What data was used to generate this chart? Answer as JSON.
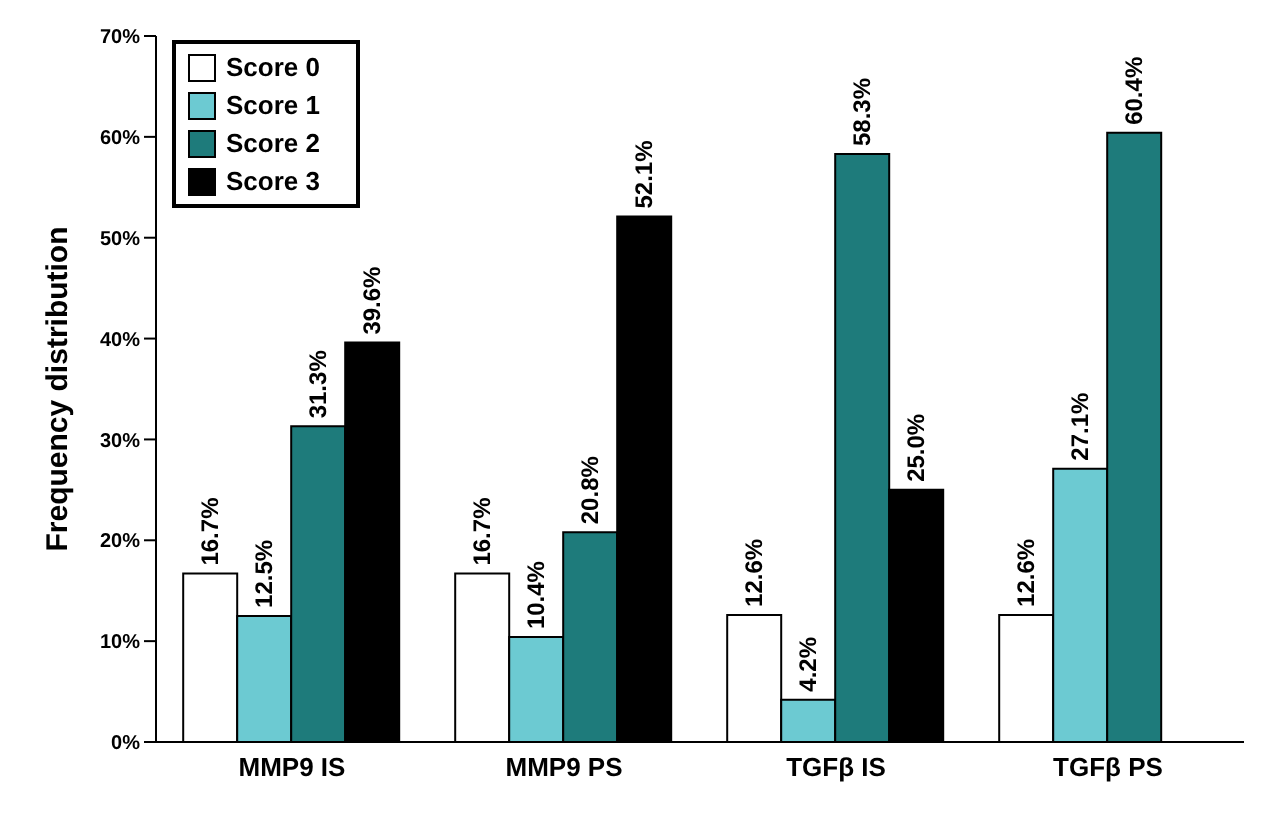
{
  "chart_data": {
    "type": "bar",
    "ylabel": "Frequency distribution",
    "categories": [
      "MMP9 IS",
      "MMP9 PS",
      "TGFβ IS",
      "TGFβ PS"
    ],
    "series": [
      {
        "name": "Score 0",
        "color": "#ffffff",
        "values": [
          16.7,
          16.7,
          12.6,
          12.6
        ],
        "value_labels": [
          "16.7%",
          "16.7%",
          "12.6%",
          "12.6%"
        ]
      },
      {
        "name": "Score 1",
        "color": "#6ccad2",
        "values": [
          12.5,
          10.4,
          4.2,
          27.1
        ],
        "value_labels": [
          "12.5%",
          "10.4%",
          "4.2%",
          "27.1%"
        ]
      },
      {
        "name": "Score 2",
        "color": "#1e7b7b",
        "values": [
          31.3,
          20.8,
          58.3,
          60.4
        ],
        "value_labels": [
          "31.3%",
          "20.8%",
          "58.3%",
          "60.4%"
        ]
      },
      {
        "name": "Score 3",
        "color": "#000000",
        "values": [
          39.6,
          52.1,
          25.0,
          null
        ],
        "value_labels": [
          "39.6%",
          "52.1%",
          "25.0%",
          null
        ]
      }
    ],
    "ylim": [
      0,
      70
    ],
    "yticks": [
      {
        "value": 0,
        "label": "0%"
      },
      {
        "value": 10,
        "label": "10%"
      },
      {
        "value": 20,
        "label": "20%"
      },
      {
        "value": 30,
        "label": "30%"
      },
      {
        "value": 40,
        "label": "40%"
      },
      {
        "value": 50,
        "label": "50%"
      },
      {
        "value": 60,
        "label": "60%"
      },
      {
        "value": 70,
        "label": "70%"
      }
    ],
    "grid": false,
    "legend": "top left"
  }
}
